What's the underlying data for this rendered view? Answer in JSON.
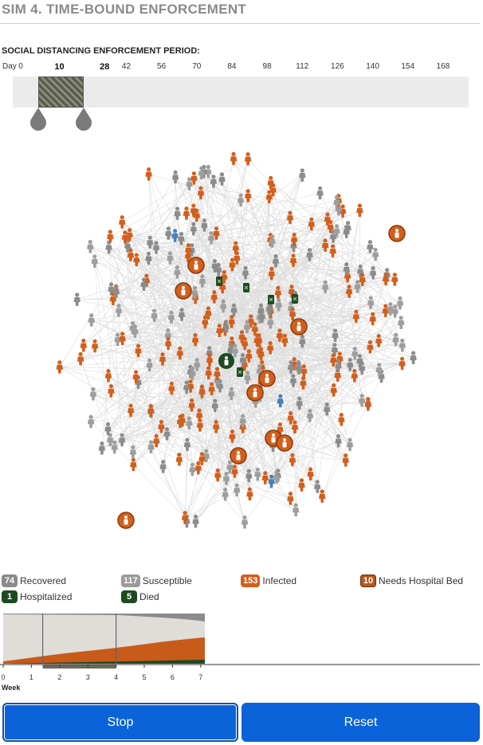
{
  "title": "SIM 4. TIME-BOUND ENFORCEMENT",
  "period_label": "SOCIAL DISTANCING ENFORCEMENT PERIOD:",
  "timeline": {
    "day_word": "Day",
    "ticks": [
      {
        "label": "0",
        "day": 0
      },
      {
        "label": "42",
        "day": 42
      },
      {
        "label": "56",
        "day": 56
      },
      {
        "label": "70",
        "day": 70
      },
      {
        "label": "84",
        "day": 84
      },
      {
        "label": "98",
        "day": 98
      },
      {
        "label": "112",
        "day": 112
      },
      {
        "label": "126",
        "day": 126
      },
      {
        "label": "140",
        "day": 140
      },
      {
        "label": "154",
        "day": 154
      },
      {
        "label": "168",
        "day": 168
      }
    ],
    "start_label": "10",
    "end_label": "28",
    "start_day": 10,
    "end_day": 28
  },
  "legend": {
    "recovered": {
      "count": "74",
      "label": "Recovered",
      "color": "#8a8a8a"
    },
    "susceptible": {
      "count": "117",
      "label": "Susceptible",
      "color": "#9a9a9a"
    },
    "infected": {
      "count": "153",
      "label": "Infected",
      "color": "#d35f1c"
    },
    "needs_bed": {
      "count": "10",
      "label": "Needs Hospital Bed",
      "color": "#b5581c"
    },
    "hospitalized": {
      "count": "1",
      "label": "Hospitalized",
      "color": "#1e4a21"
    },
    "died": {
      "count": "5",
      "label": "Died",
      "color": "#1e4a21"
    }
  },
  "colors": {
    "infected": "#d35f1c",
    "recovered": "#8c8c8c",
    "susceptible": "#9e9e9e",
    "hospitalized": "#1e4a21",
    "vulnerable": "#4a7fb8",
    "button": "#0a63d8"
  },
  "week_axis": {
    "ticks": [
      "0",
      "1",
      "2",
      "3",
      "4",
      "5",
      "6",
      "7"
    ],
    "label": "Week",
    "enforcement_weeks": [
      1.4,
      4.0
    ]
  },
  "buttons": {
    "stop": "Stop",
    "reset": "Reset"
  }
}
